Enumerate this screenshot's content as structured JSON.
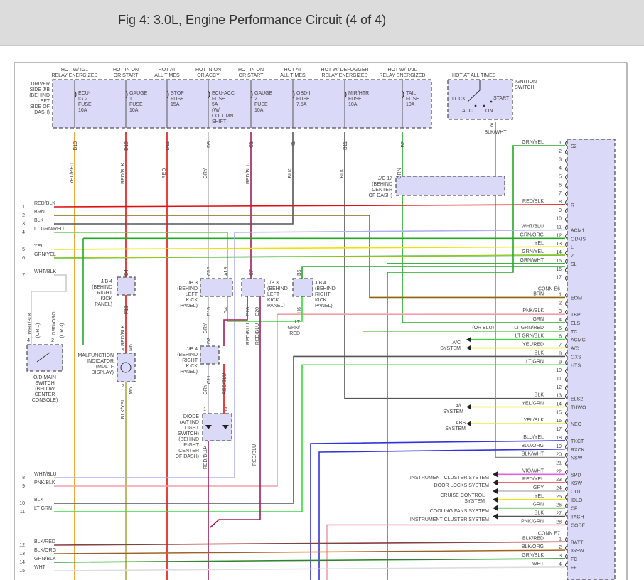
{
  "title": "Fig 4: 3.0L, Engine Performance Circuit (4 of 4)",
  "fuse_block": {
    "label": [
      "DRIVER",
      "SIDE J/B",
      "(BEHIND",
      "LEFT",
      "SIDE OF",
      "DASH)"
    ],
    "fuses": [
      {
        "hot": [
          "HOT W/ IG1",
          "RELAY ENERGIZED"
        ],
        "name": [
          "ECU-",
          "IG 2",
          "FUSE",
          "10A"
        ],
        "conn": "B13",
        "wire": "YEL/RED"
      },
      {
        "hot": [
          "HOT IN ON",
          "OR START"
        ],
        "name": [
          "GAUGE",
          "1",
          "FUSE",
          "10A"
        ],
        "conn": "D10",
        "wire": "RED/BLK"
      },
      {
        "hot": [
          "HOT AT",
          "ALL TIMES"
        ],
        "name": [
          "STOP",
          "FUSE",
          "15A"
        ],
        "conn": "D11",
        "wire": "RED"
      },
      {
        "hot": [
          "HOT IN ON",
          "OR ACCY"
        ],
        "name": [
          "ECU-ACC",
          "FUSE",
          "5A",
          "(W/",
          "COLUMN",
          "SHIFT)"
        ],
        "conn": "D8",
        "wire": "GRY"
      },
      {
        "hot": [
          "HOT IN ON",
          "OR START"
        ],
        "name": [
          "GAUGE",
          "2",
          "FUSE",
          "10A"
        ],
        "conn": "C1",
        "wire": "RED/BLU"
      },
      {
        "hot": [
          "HOT AT",
          "ALL TIMES"
        ],
        "name": [
          "OBD-II",
          "FUSE",
          "7.5A"
        ],
        "conn": "I1",
        "wire": "BLK"
      },
      {
        "hot": [
          "HOT W/ DEFOGGER",
          "RELAY ENERGIZED"
        ],
        "name": [
          "MIR/HTR",
          "FUSE",
          "10A"
        ],
        "conn": "B11",
        "wire": "BLK"
      },
      {
        "hot": [
          "HOT W/ TAIL",
          "RELAY ENERGIZED"
        ],
        "name": [
          "TAIL",
          "FUSE",
          "10A"
        ],
        "conn": "B2",
        "wire": "GRN"
      }
    ]
  },
  "ignition_switch": {
    "hot": "HOT AT ALL TIMES",
    "label": [
      "IGNITION",
      "SWITCH"
    ],
    "positions": {
      "lock": "LOCK",
      "acc": "ACC",
      "on": "ON",
      "start": "START"
    },
    "pin": "8",
    "wire": "BLK/WHT"
  },
  "jc17": {
    "label": [
      "J/C 17",
      "(BEHIND",
      "CENTER",
      "OF DASH)"
    ]
  },
  "left_wires": [
    {
      "num": "1",
      "wire": "RED/BLK"
    },
    {
      "num": "2",
      "wire": "BRN"
    },
    {
      "num": "3",
      "wire": "BLK"
    },
    {
      "num": "4",
      "wire": "LT GRN/RED"
    },
    {
      "num": "5",
      "wire": "YEL"
    },
    {
      "num": "6",
      "wire": "GRN/YEL"
    },
    {
      "num": "7",
      "wire": "WHT/BLK"
    },
    {
      "num": "8",
      "wire": "WHT/BLU"
    },
    {
      "num": "9",
      "wire": "PNK/BLK"
    },
    {
      "num": "10",
      "wire": "BLK"
    },
    {
      "num": "11",
      "wire": "LT GRN"
    },
    {
      "num": "12",
      "wire": "BLK/RED"
    },
    {
      "num": "13",
      "wire": "BLK/ORG"
    },
    {
      "num": "14",
      "wire": "GRN/BLK"
    },
    {
      "num": "15",
      "wire": "WHT"
    }
  ],
  "components": {
    "jb4_a": {
      "label": [
        "J/B 4",
        "(BEHIND",
        "RIGHT",
        "KICK",
        "PANEL)"
      ],
      "top": "D4",
      "bottom": "F13",
      "wire": "RED/BLK"
    },
    "jb3_a": {
      "label": [
        "J/B 3",
        "(BEHIND",
        "LEFT",
        "KICK",
        "PANEL)"
      ],
      "top": [
        "C15",
        "A13"
      ],
      "bottom": [
        "D15",
        "G4"
      ],
      "wire": "GRY"
    },
    "jb3_b": {
      "label": [
        "J/B 3",
        "(BEHIND",
        "LEFT",
        "KICK",
        "PANEL)"
      ],
      "top": "C7",
      "bottom": [
        "D20",
        "C20"
      ],
      "wires": [
        "RED/BLU",
        "RED/BLU"
      ]
    },
    "jb4_b": {
      "label": [
        "J/B 4",
        "(BEHIND",
        "RIGHT",
        "KICK",
        "PANEL)"
      ],
      "top": "B5",
      "bottom": "H6",
      "wire": [
        "LT",
        "GRN/",
        "RED"
      ]
    },
    "jb4_c": {
      "label": [
        "J/B 4",
        "(BEHIND",
        "RIGHT",
        "KICK",
        "PANEL)"
      ],
      "top": "D2",
      "bottom": "C11",
      "wire": "GRY",
      "wire2": "RED/BLU"
    },
    "diode": {
      "label": [
        "DIODE",
        "(A/T IND",
        "LIGHT",
        "SWITCH)",
        "(BEHIND",
        "RIGHT",
        "CENTER",
        "OF DASH)"
      ],
      "pins": [
        "1",
        "3",
        "2"
      ],
      "wire": "RED/BLU",
      "wire2": "RED/BLU"
    },
    "mil": {
      "label": [
        "MALFUNCTION",
        "INDICATOR",
        "(MULTI-",
        "DISPLAY)"
      ],
      "pins": [
        "4",
        "M6",
        "7",
        "M6"
      ],
      "wire": "BLK/YEL"
    },
    "od_switch": {
      "label": [
        "O/D MAIN",
        "SWITCH",
        "(BELOW",
        "CENTER",
        "CONSOLE)"
      ],
      "pins": [
        "4",
        "2"
      ],
      "wires": [
        "WHT/BLK",
        "GRN/ORG"
      ],
      "alt": [
        "(OR 1)",
        "(OR 3)"
      ]
    }
  },
  "pcm": {
    "connectors": [
      {
        "name": "",
        "pins": [
          {
            "p": "1",
            "w": "GRN/YEL",
            "f": "S2"
          },
          {
            "p": "2"
          },
          {
            "p": "3"
          },
          {
            "p": "4"
          },
          {
            "p": "5"
          },
          {
            "p": "6"
          },
          {
            "p": "7"
          },
          {
            "p": "8",
            "w": "RED/BLK",
            "f": "R"
          },
          {
            "p": "9"
          },
          {
            "p": "10"
          },
          {
            "p": "11",
            "w": "WHT/BLU",
            "f": "ACM1"
          },
          {
            "p": "12",
            "w": "GRN/ORG",
            "f": "ODMS"
          },
          {
            "p": "13",
            "w": "YEL",
            "f": "L"
          },
          {
            "p": "14",
            "w": "GRN/YEL",
            "f": "2"
          },
          {
            "p": "15",
            "w": "GRN/WHT",
            "f": "SL"
          },
          {
            "p": "16"
          },
          {
            "p": "17"
          }
        ]
      },
      {
        "name": "CONN E6",
        "pins": [
          {
            "p": "1",
            "w": "BRN",
            "f": "EOM"
          },
          {
            "p": "2"
          },
          {
            "p": "3",
            "w": "PNK/BLK",
            "f": "TBP"
          },
          {
            "p": "4",
            "w": "GRN",
            "f": "ELS"
          },
          {
            "p": "5",
            "w": "LT GRN/RED",
            "f": "TC",
            "note": "(OR BLU)"
          },
          {
            "p": "6",
            "w": "LT GRN/BLK",
            "f": "ACMG"
          },
          {
            "p": "7",
            "w": "YEL/RED",
            "f": "A/C"
          },
          {
            "p": "8",
            "w": "BLK",
            "f": "OXS"
          },
          {
            "p": "9",
            "w": "LT GRN",
            "f": "HTS"
          },
          {
            "p": "10"
          },
          {
            "p": "11"
          },
          {
            "p": "12"
          },
          {
            "p": "13",
            "w": "BLK",
            "f": "ELS2"
          },
          {
            "p": "14",
            "w": "YEL/GRN",
            "f": "THWO"
          },
          {
            "p": "15"
          },
          {
            "p": "16",
            "w": "YEL/BLK",
            "f": "NEO"
          },
          {
            "p": "17"
          },
          {
            "p": "18",
            "w": "BLU/YEL",
            "f": "TXCT"
          },
          {
            "p": "19",
            "w": "BLU/ORG",
            "f": "RXCK"
          },
          {
            "p": "20",
            "w": "BLK/WHT",
            "f": "NSW"
          },
          {
            "p": "21"
          },
          {
            "p": "22",
            "w": "VIO/WHT",
            "f": "SPD"
          },
          {
            "p": "23",
            "w": "RED/YEL",
            "f": "KSW"
          },
          {
            "p": "24",
            "w": "GRY",
            "f": "OD1"
          },
          {
            "p": "25",
            "w": "YEL",
            "f": "IDLO"
          },
          {
            "p": "26",
            "w": "GRN",
            "f": "CF"
          },
          {
            "p": "27",
            "w": "BLK",
            "f": "TACH"
          },
          {
            "p": "28",
            "w": "PNK/GRN",
            "f": "CODE"
          }
        ]
      },
      {
        "name": "CONN E7",
        "pins": [
          {
            "p": "1",
            "w": "BLK/RED",
            "f": "BATT"
          },
          {
            "p": "2",
            "w": "BLK/ORG",
            "f": "IGSW"
          },
          {
            "p": "3",
            "w": "GRN/BLK",
            "f": "FC"
          },
          {
            "p": "4",
            "w": "WHT",
            "f": "FF"
          }
        ]
      }
    ]
  },
  "systems": {
    "ac_1": [
      "A/C",
      "SYSTEM"
    ],
    "ac_2": [
      "A/C",
      "SYSTEM"
    ],
    "abs": [
      "ABS",
      "SYSTEM"
    ],
    "inst1": "INSTRUMENT CLUSTER SYSTEM",
    "door": "DOOR LOCKS SYSTEM",
    "cruise": [
      "CRUISE CONTROL",
      "SYSTEM"
    ],
    "fans": "COOLING FANS SYSTEM",
    "inst2": "INSTRUMENT CLUSTER SYSTEM"
  },
  "wire_colors": {
    "RED": "#e01010",
    "YEL": "#f2e200",
    "GRY": "#b8b8b8",
    "BLK": "#555555",
    "GRN": "#22aa22",
    "LTGRN": "#33dd33",
    "BRN": "#8b6508",
    "PNK": "#f0a0a8",
    "BLU": "#3333dd",
    "LAV": "#b0b0f0",
    "ORG": "#e08020",
    "VIO": "#e060e0"
  },
  "box_fill": "#dadaf8"
}
